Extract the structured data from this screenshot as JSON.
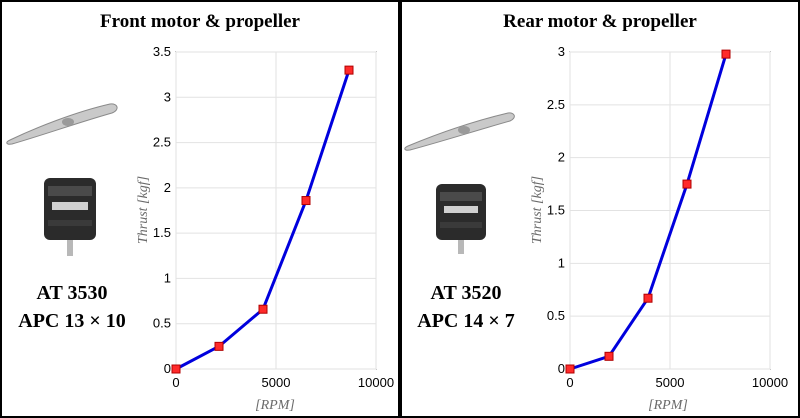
{
  "chart_data": [
    {
      "type": "line",
      "title": "Front motor & propeller",
      "motor": "AT 3530",
      "propeller": "APC 13 × 10",
      "xlabel": "[RPM]",
      "ylabel": "Thrust [kgf]",
      "xlim": [
        0,
        10000
      ],
      "ylim": [
        0,
        3.5
      ],
      "xticks": [
        0,
        5000,
        10000
      ],
      "yticks": [
        0,
        0.5,
        1,
        1.5,
        2,
        2.5,
        3,
        3.5
      ],
      "xtick_labels": [
        "0",
        "5000",
        "10000"
      ],
      "ytick_labels": [
        "0",
        "0.5",
        "1",
        "1.5",
        "2",
        "2.5",
        "3",
        "3.5"
      ],
      "grid": true,
      "series": [
        {
          "name": "Thrust",
          "x": [
            0,
            2150,
            4350,
            6500,
            8650
          ],
          "y": [
            0,
            0.25,
            0.66,
            1.86,
            3.3
          ]
        }
      ]
    },
    {
      "type": "line",
      "title": "Rear motor & propeller",
      "motor": "AT 3520",
      "propeller": "APC 14 × 7",
      "xlabel": "[RPM]",
      "ylabel": "Thrust [kgf]",
      "xlim": [
        0,
        10000
      ],
      "ylim": [
        0,
        3
      ],
      "xticks": [
        0,
        5000,
        10000
      ],
      "yticks": [
        0,
        0.5,
        1,
        1.5,
        2,
        2.5,
        3
      ],
      "xtick_labels": [
        "0",
        "5000",
        "10000"
      ],
      "ytick_labels": [
        "0",
        "0.5",
        "1",
        "1.5",
        "2",
        "2.5",
        "3"
      ],
      "grid": true,
      "series": [
        {
          "name": "Thrust",
          "x": [
            0,
            1950,
            3900,
            5850,
            7800
          ],
          "y": [
            0,
            0.12,
            0.67,
            1.75,
            2.98
          ]
        }
      ]
    }
  ],
  "colors": {
    "line": "#0000dd",
    "marker": "#ff2a2a",
    "grid": "#e2e2e2"
  },
  "icons": {
    "propeller": "propeller-icon",
    "motor": "motor-icon"
  }
}
